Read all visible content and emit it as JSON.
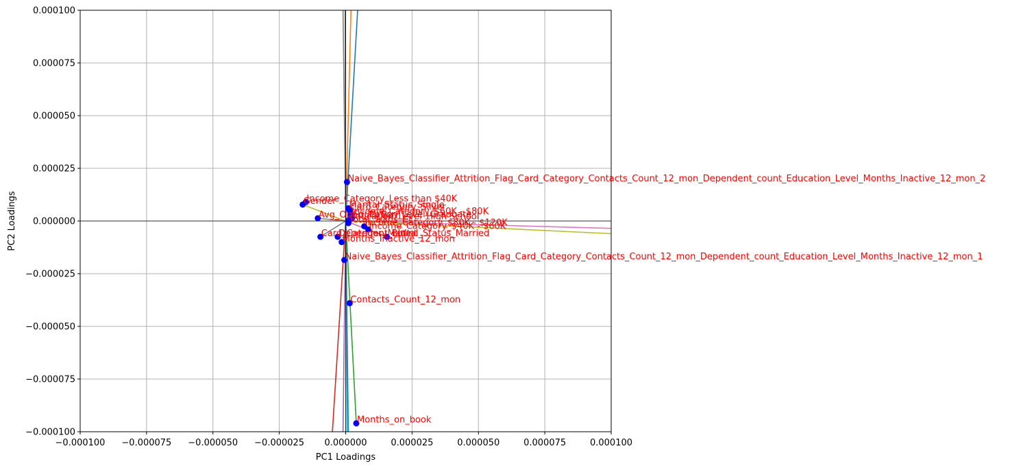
{
  "chart_data": {
    "type": "scatter",
    "xlabel": "PC1 Loadings",
    "ylabel": "PC2 Loadings",
    "xlim": [
      -0.0001,
      0.0001
    ],
    "ylim": [
      -0.0001,
      0.0001
    ],
    "x_ticks": [
      "−0.000100",
      "−0.000075",
      "−0.000050",
      "−0.000025",
      "0.000000",
      "0.000025",
      "0.000050",
      "0.000075",
      "0.000100"
    ],
    "y_ticks": [
      "−0.000100",
      "−0.000075",
      "−0.000050",
      "−0.000025",
      "0.000000",
      "0.000025",
      "0.000050",
      "0.000075",
      "0.000100"
    ],
    "x_tick_values": [
      -0.0001,
      -7.5e-05,
      -5e-05,
      -2.5e-05,
      0,
      2.5e-05,
      5e-05,
      7.5e-05,
      0.0001
    ],
    "y_tick_values": [
      -0.0001,
      -7.5e-05,
      -5e-05,
      -2.5e-05,
      0,
      2.5e-05,
      5e-05,
      7.5e-05,
      0.0001
    ],
    "grid": true,
    "point_color": "#0000ff",
    "label_color": "#ff0000",
    "points": [
      {
        "label": "Naive_Bayes_Classifier_Attrition_Flag_Card_Category_Contacts_Count_12_mon_Dependent_count_Education_Level_Months_Inactive_12_mon_2",
        "x": 5e-07,
        "y": 1.85e-05
      },
      {
        "label": "Naive_Bayes_Classifier_Attrition_Flag_Card_Category_Contacts_Count_12_mon_Dependent_count_Education_Level_Months_Inactive_12_mon_1",
        "x": -5e-07,
        "y": -1.85e-05
      },
      {
        "label": "Months_on_book",
        "x": 4e-06,
        "y": -9.6e-05
      },
      {
        "label": "Contacts_Count_12_mon",
        "x": 1.5e-06,
        "y": -3.9e-05
      },
      {
        "label": "Income_Category_Less than $40K",
        "x": -1.5e-05,
        "y": 9e-06
      },
      {
        "label": "Gender",
        "x": -1.62e-05,
        "y": 7.8e-06
      },
      {
        "label": "Avg_Open_To_Buy",
        "x": -1.05e-05,
        "y": 1.3e-06
      },
      {
        "label": "Card_Category_Blue",
        "x": -9.5e-06,
        "y": -7.5e-06
      },
      {
        "label": "Months_Inactive_12_mon",
        "x": -1.5e-06,
        "y": -1e-05
      },
      {
        "label": "Marital_Status_Single",
        "x": 1e-06,
        "y": 6e-06
      },
      {
        "label": "Card_Category_Silver",
        "x": 1.5e-06,
        "y": 5e-06
      },
      {
        "label": "Income_Category_$60K - $80K",
        "x": 2e-06,
        "y": 3e-06
      },
      {
        "label": "Education_Level_Graduate",
        "x": 2.5e-06,
        "y": 1.5e-06
      },
      {
        "label": "Income_Category_$80K - $120K",
        "x": 7e-06,
        "y": -2.5e-06
      },
      {
        "label": "Income_Category_$40K - $60K",
        "x": 8.5e-06,
        "y": -4e-06
      },
      {
        "label": "Marital_Status_Married",
        "x": 1.55e-05,
        "y": -7.5e-06
      },
      {
        "label": "Dependent_count",
        "x": -3e-06,
        "y": -7.5e-06
      },
      {
        "label": "Total_Trans_Ct",
        "x": 1e-06,
        "y": -1e-06
      },
      {
        "label": "Education_Level_High School",
        "x": 1.2e-06,
        "y": 5e-07
      }
    ],
    "vectors": [
      {
        "color": "#1f77b4",
        "x": 4.5e-06,
        "y": 0.0001
      },
      {
        "color": "#ff7f0e",
        "x": 2e-06,
        "y": 0.0001
      },
      {
        "color": "#2ca02c",
        "x": 4e-06,
        "y": -9.6e-05
      },
      {
        "color": "#d62728",
        "x": -5e-06,
        "y": -0.0001
      },
      {
        "color": "#9467bd",
        "x": -1e-06,
        "y": -0.0001
      },
      {
        "color": "#8c564b",
        "x": -2e-07,
        "y": 0.0001
      },
      {
        "color": "#e377c2",
        "x": 0.0001,
        "y": -3.5e-06
      },
      {
        "color": "#7f7f7f",
        "x": -1e-06,
        "y": 0.0001
      },
      {
        "color": "#bcbd22",
        "x": 0.0001,
        "y": -6e-06
      },
      {
        "color": "#17becf",
        "x": 5e-07,
        "y": -0.0001
      },
      {
        "color": "#bcbd22",
        "x": -1.62e-05,
        "y": 7.8e-06
      },
      {
        "color": "#7f7f7f",
        "x": -9.5e-06,
        "y": -7.5e-06
      },
      {
        "color": "#7f7f7f",
        "x": -1.05e-05,
        "y": 1.3e-06
      },
      {
        "color": "#8c564b",
        "x": 1.55e-05,
        "y": -7.5e-06
      },
      {
        "color": "#e377c2",
        "x": 8.5e-06,
        "y": -4e-06
      },
      {
        "color": "#1f77b4",
        "x": 1e-06,
        "y": -0.0001
      }
    ]
  }
}
